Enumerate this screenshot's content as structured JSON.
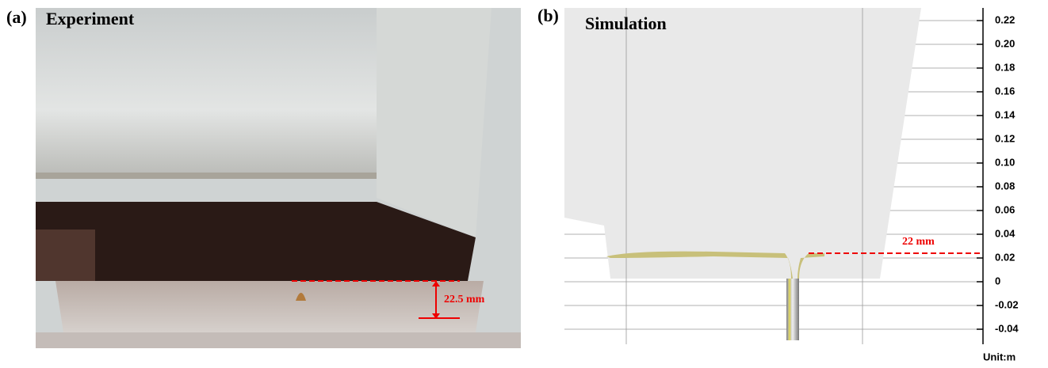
{
  "panel_a": {
    "label": "(a)",
    "title": "Experiment",
    "annotation": "22.5 mm"
  },
  "panel_b": {
    "label": "(b)",
    "title": "Simulation",
    "annotation": "22 mm",
    "ylim": [
      -0.05,
      0.23
    ],
    "yticks": [
      0.22,
      {
        "value": 0.2,
        "label": "0.20"
      },
      0.18,
      0.16,
      0.14,
      0.12,
      {
        "value": 0.1,
        "label": "0.10"
      },
      0.08,
      0.06,
      0.04,
      0.02,
      0,
      -0.02,
      -0.04
    ],
    "unit": "Unit:m"
  }
}
